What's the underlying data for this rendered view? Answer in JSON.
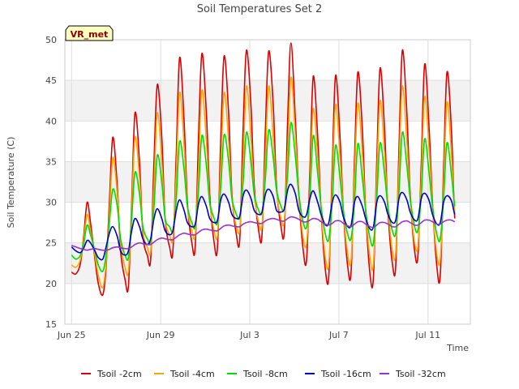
{
  "chart_data": {
    "type": "line",
    "title": "Soil Temperatures Set 2",
    "xlabel": "Time",
    "ylabel": "Soil Temperature (C)",
    "badge": "VR_met",
    "ylim": [
      15,
      50
    ],
    "yticks": [
      15,
      20,
      25,
      30,
      35,
      40,
      45,
      50
    ],
    "xlim_days": [
      -0.3,
      17.9
    ],
    "xticks": [
      {
        "label": "Jun 25",
        "day": 0
      },
      {
        "label": "Jun 29",
        "day": 4
      },
      {
        "label": "Jul 3",
        "day": 8
      },
      {
        "label": "Jul 7",
        "day": 12
      },
      {
        "label": "Jul 11",
        "day": 16
      }
    ],
    "grid": true,
    "legend_position": "bottom",
    "x_days": [
      0,
      0.2,
      0.4,
      0.55,
      0.7,
      0.85,
      1.05,
      1.2,
      1.4,
      1.55,
      1.7,
      1.85,
      2.05,
      2.2,
      2.4,
      2.55,
      2.7,
      2.85,
      3.05,
      3.2,
      3.4,
      3.55,
      3.7,
      3.85,
      4.05,
      4.2,
      4.4,
      4.55,
      4.7,
      4.85,
      5.05,
      5.2,
      5.4,
      5.55,
      5.7,
      5.85,
      6.05,
      6.2,
      6.4,
      6.55,
      6.7,
      6.85,
      7.05,
      7.2,
      7.4,
      7.55,
      7.7,
      7.85,
      8.05,
      8.2,
      8.4,
      8.55,
      8.7,
      8.85,
      9.05,
      9.2,
      9.4,
      9.55,
      9.7,
      9.85,
      10.05,
      10.2,
      10.4,
      10.55,
      10.7,
      10.85,
      11.05,
      11.2,
      11.4,
      11.55,
      11.7,
      11.85,
      12.05,
      12.2,
      12.4,
      12.55,
      12.7,
      12.85,
      13.05,
      13.2,
      13.4,
      13.55,
      13.7,
      13.85,
      14.05,
      14.2,
      14.4,
      14.55,
      14.7,
      14.85,
      15.05,
      15.2,
      15.4,
      15.55,
      15.7,
      15.85,
      16.05,
      16.2,
      16.4,
      16.55,
      16.7,
      16.85,
      17.05,
      17.2,
      17.4,
      17.55,
      17.7
    ],
    "series": [
      {
        "name": "Tsoil -2cm",
        "color": "#dd0000",
        "values": [
          21.4,
          21.2,
          22.5,
          26,
          30,
          27.5,
          23,
          20,
          18.6,
          22,
          30,
          38,
          32,
          24,
          20.5,
          19.6,
          30,
          41,
          35,
          26,
          23.5,
          23,
          35,
          44.5,
          38,
          28,
          24.5,
          24,
          36,
          47.8,
          40,
          30,
          25,
          24.5,
          38,
          48.3,
          41,
          31,
          25,
          24.5,
          38,
          48,
          41,
          31,
          26,
          25.5,
          39,
          48.7,
          42,
          32,
          26.5,
          26,
          39,
          48.6,
          42,
          32,
          27,
          26.5,
          40,
          49.6,
          40,
          31,
          24,
          23,
          34,
          45.5,
          38,
          29,
          21.5,
          21,
          34,
          45.6,
          38,
          29,
          22,
          21.5,
          35,
          46,
          39,
          29,
          21,
          20.8,
          35,
          46.5,
          39,
          29,
          22.5,
          22.2,
          37,
          48.7,
          41,
          31,
          24,
          23.5,
          35,
          47,
          39,
          30,
          22,
          21,
          34,
          46,
          39,
          28,
          24.5
        ]
      },
      {
        "name": "Tsoil -4cm",
        "color": "#ffa500",
        "values": [
          22.3,
          22,
          23,
          25.5,
          28.5,
          26.5,
          23.5,
          21,
          19.5,
          22.5,
          28.5,
          35.5,
          31,
          25,
          22,
          21.5,
          29,
          38,
          33,
          26.5,
          24.5,
          24,
          32,
          41,
          35,
          28,
          26,
          25.5,
          33.5,
          43.5,
          37,
          29.5,
          26.5,
          26,
          34,
          43.8,
          37.5,
          30,
          26.5,
          26,
          34.5,
          43.5,
          37.5,
          30.5,
          27,
          26.8,
          35,
          44.3,
          38,
          31,
          27.5,
          27.2,
          35.5,
          44.3,
          38,
          31.5,
          28,
          27.8,
          36,
          45.4,
          38,
          31,
          25.5,
          25,
          32,
          41.5,
          35.5,
          29,
          23,
          22.5,
          32,
          42,
          35.5,
          29,
          23.5,
          23,
          33,
          42.2,
          36,
          29,
          23,
          22.5,
          33,
          42.5,
          36,
          29.5,
          24,
          23.8,
          34.5,
          44.3,
          37.5,
          30.5,
          25,
          24.7,
          33,
          43,
          36.5,
          29.5,
          23.5,
          23,
          32,
          42.3,
          36,
          28.5,
          25.5
        ]
      },
      {
        "name": "Tsoil -8cm",
        "color": "#00dd00",
        "values": [
          23.5,
          23,
          23.5,
          25,
          27.2,
          26,
          24,
          22.3,
          21.5,
          23.5,
          27.5,
          31.6,
          29.5,
          25.5,
          23.5,
          23.2,
          28,
          33.7,
          31,
          27,
          25.5,
          25.2,
          29.5,
          35.8,
          32.5,
          28,
          27,
          26.5,
          30.5,
          37.5,
          34,
          29.5,
          27.5,
          27,
          31.5,
          38.2,
          34.5,
          30,
          28,
          27.5,
          32,
          38.3,
          35,
          30.5,
          28.5,
          28.2,
          32.5,
          38.6,
          35,
          31,
          29,
          28.8,
          33,
          38.9,
          35.5,
          31.5,
          29.5,
          29.2,
          33.5,
          39.8,
          35.5,
          31,
          27.5,
          27,
          31,
          38.2,
          33.5,
          29.5,
          26,
          25.5,
          30,
          37,
          33,
          29,
          26,
          25.6,
          30,
          37.2,
          33,
          29,
          25.5,
          25,
          30.5,
          37.3,
          33.5,
          29.5,
          26.5,
          26.2,
          31.5,
          38.6,
          34.5,
          30.5,
          27,
          26.6,
          31,
          37.8,
          33.5,
          29.5,
          26,
          25.5,
          30.5,
          37.3,
          33.5,
          29.5,
          27
        ]
      },
      {
        "name": "Tsoil -16cm",
        "color": "#0000cc",
        "values": [
          24.5,
          24,
          23.8,
          24.4,
          25.3,
          25,
          24,
          23.2,
          23,
          24.5,
          26.2,
          27,
          25.8,
          24,
          23.5,
          24,
          26.5,
          28,
          27,
          25.5,
          24.8,
          25.5,
          28,
          29.2,
          28,
          26.5,
          26,
          26.5,
          29,
          30.3,
          29,
          27.5,
          27,
          27.3,
          29.8,
          30.7,
          29.5,
          28,
          27.5,
          27.8,
          30.3,
          31,
          30,
          28.5,
          28,
          28.3,
          30.8,
          31.5,
          30.5,
          29,
          28.5,
          28.8,
          31,
          31.6,
          30.7,
          29,
          28.8,
          29.2,
          31.5,
          32.2,
          31,
          29,
          28.2,
          28.5,
          30.5,
          31.4,
          30,
          28.5,
          27.2,
          27.5,
          30,
          30.9,
          30,
          28.2,
          27,
          27.2,
          30,
          30.7,
          29.5,
          28,
          26.7,
          27,
          30,
          30.8,
          30,
          28.5,
          27.5,
          27.8,
          30.5,
          31.2,
          30.3,
          28.8,
          27.8,
          28,
          30.5,
          31.1,
          30.2,
          28.5,
          27.3,
          27.5,
          30,
          30.8,
          30.2,
          28.5,
          27.6
        ]
      },
      {
        "name": "Tsoil -32cm",
        "color": "#9932cc",
        "values": [
          24.7,
          24.5,
          24.3,
          24.2,
          24.1,
          24.2,
          24.3,
          24.2,
          24.1,
          24.1,
          24.2,
          24.4,
          24.5,
          24.4,
          24.3,
          24.3,
          24.5,
          24.8,
          25,
          24.9,
          24.8,
          24.8,
          25.1,
          25.4,
          25.6,
          25.5,
          25.4,
          25.4,
          25.7,
          26,
          26.2,
          26.1,
          26,
          26,
          26.3,
          26.6,
          26.7,
          26.6,
          26.5,
          26.5,
          26.8,
          27.1,
          27.2,
          27.1,
          27,
          27,
          27.3,
          27.5,
          27.6,
          27.5,
          27.4,
          27.4,
          27.7,
          27.9,
          28,
          27.9,
          27.7,
          27.7,
          28,
          28.2,
          28.1,
          27.9,
          27.6,
          27.6,
          27.8,
          28,
          27.9,
          27.6,
          27.3,
          27.2,
          27.4,
          27.7,
          27.7,
          27.4,
          27.1,
          27,
          27.3,
          27.6,
          27.6,
          27.3,
          27,
          26.9,
          27.2,
          27.5,
          27.5,
          27.3,
          27,
          27,
          27.3,
          27.6,
          27.7,
          27.5,
          27.2,
          27.2,
          27.5,
          27.8,
          27.8,
          27.6,
          27.3,
          27.3,
          27.6,
          27.8,
          27.8,
          27.6,
          27.5
        ]
      }
    ]
  }
}
